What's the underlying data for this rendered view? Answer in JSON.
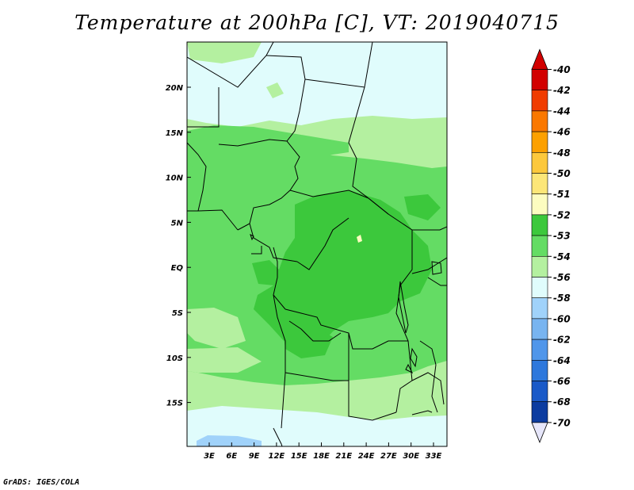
{
  "title": "Temperature at 200hPa [C], VT: 2019040715",
  "credit": "GrADS: IGES/COLA",
  "map": {
    "lat_ticks": [
      "20N",
      "15N",
      "10N",
      "5N",
      "EQ",
      "5S",
      "10S",
      "15S"
    ],
    "lon_ticks": [
      "3E",
      "6E",
      "9E",
      "12E",
      "15E",
      "18E",
      "21E",
      "24E",
      "27E",
      "30E",
      "33E"
    ]
  },
  "colorbar": {
    "labels": [
      "-40",
      "-42",
      "-44",
      "-46",
      "-48",
      "-50",
      "-51",
      "-52",
      "-53",
      "-54",
      "-56",
      "-58",
      "-60",
      "-62",
      "-64",
      "-66",
      "-68",
      "-70"
    ],
    "colors": [
      "#d20000",
      "#f03c00",
      "#fa7800",
      "#fca000",
      "#fcc83c",
      "#fce678",
      "#fcfcc0",
      "#3cc83c",
      "#64dc64",
      "#b4f0a0",
      "#e0fcfc",
      "#a0d2fa",
      "#78b4f0",
      "#5096ea",
      "#2e78dc",
      "#1a5ac8",
      "#0c3ca0",
      "#0a0a6e"
    ],
    "top_cap_color": "#d20000",
    "bottom_cap_color": "#e6e6fa"
  }
}
